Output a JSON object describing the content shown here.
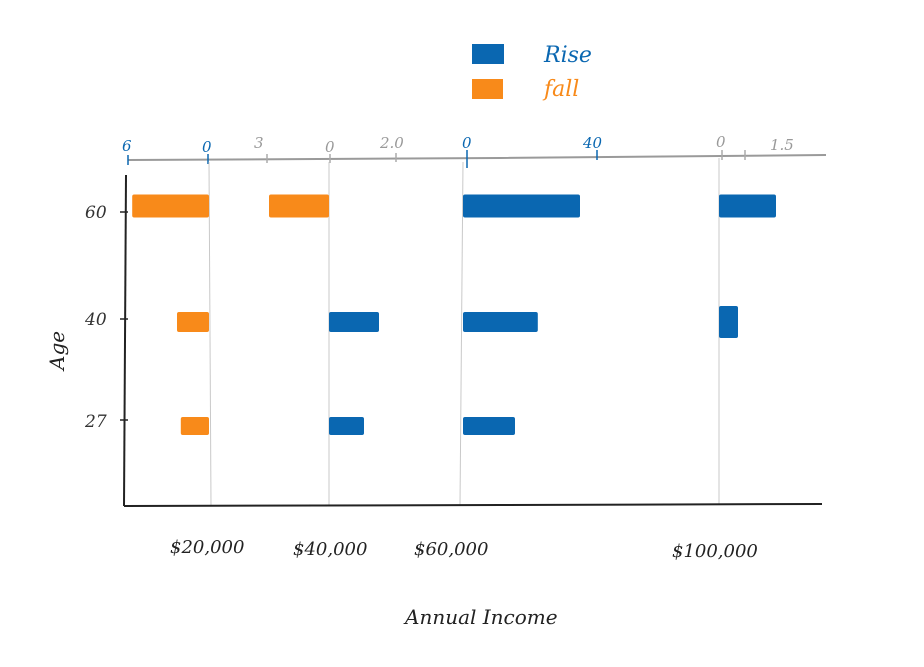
{
  "chart_data": {
    "type": "bar",
    "orientation": "horizontal",
    "xlabel": "Annual Income",
    "ylabel": "Age",
    "categories": [
      "60",
      "40",
      "27"
    ],
    "income_groups": [
      "$20,000",
      "$40,000",
      "$60,000",
      "$100,000"
    ],
    "colors": {
      "Rise": "#0a67b1",
      "Fall": "#f88a1a"
    },
    "legend": {
      "position": "top-center",
      "items": [
        "Rise",
        "fall"
      ]
    },
    "panels": [
      {
        "income": "$20,000",
        "top_axis_ticks": [
          "6",
          "0"
        ],
        "bars": [
          {
            "age": "60",
            "series": "Fall",
            "value": -6
          },
          {
            "age": "40",
            "series": "Fall",
            "value": -2.5
          },
          {
            "age": "27",
            "series": "Fall",
            "value": -2.2
          }
        ]
      },
      {
        "income": "$40,000",
        "top_axis_ticks": [
          "3",
          "0",
          "2.0"
        ],
        "bars": [
          {
            "age": "60",
            "series": "Fall",
            "value": -2.4
          },
          {
            "age": "40",
            "series": "Rise",
            "value": 2.0
          },
          {
            "age": "27",
            "series": "Rise",
            "value": 1.4
          }
        ]
      },
      {
        "income": "$60,000",
        "top_axis_ticks": [
          "0",
          "40"
        ],
        "bars": [
          {
            "age": "60",
            "series": "Rise",
            "value": 36
          },
          {
            "age": "40",
            "series": "Rise",
            "value": 23
          },
          {
            "age": "27",
            "series": "Rise",
            "value": 16
          }
        ]
      },
      {
        "income": "$100,000",
        "top_axis_ticks": [
          "0",
          "1.5"
        ],
        "bars": [
          {
            "age": "60",
            "series": "Rise",
            "value": 1.5
          },
          {
            "age": "40",
            "series": "Rise",
            "value": 0.5
          }
        ]
      }
    ]
  }
}
